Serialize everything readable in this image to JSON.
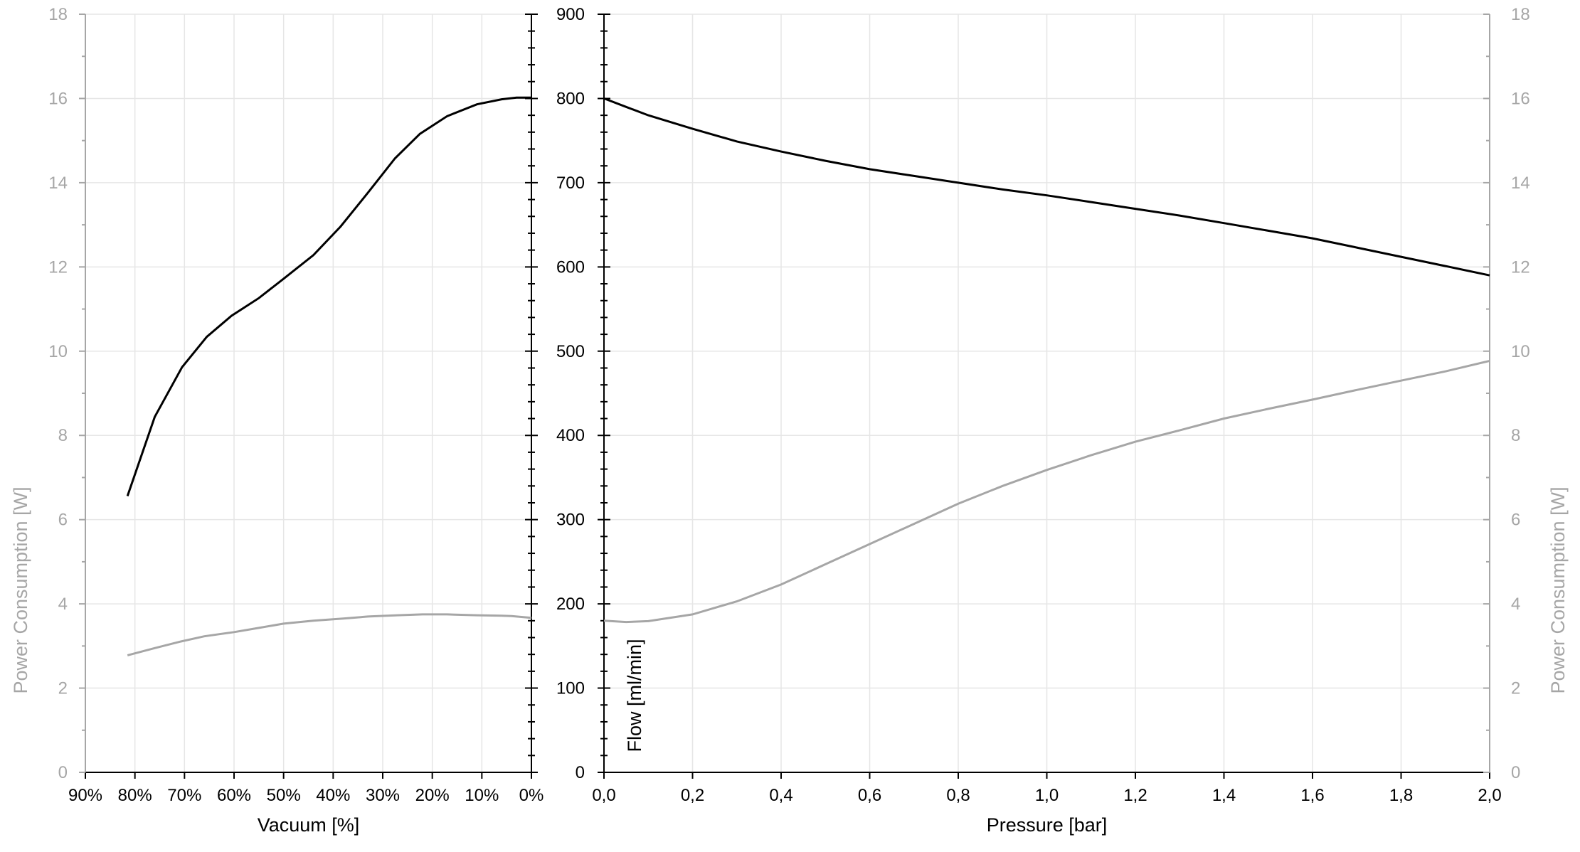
{
  "chart_data": [
    {
      "type": "line",
      "xlabel": "Vacuum [%]",
      "ylabel_left": "Power Consumption [W]",
      "ylabel_right": "",
      "x_reversed": true,
      "xlim": [
        0,
        90
      ],
      "x_ticks": [
        "90%",
        "80%",
        "70%",
        "60%",
        "50%",
        "40%",
        "30%",
        "20%",
        "10%",
        "0%"
      ],
      "x_tick_values": [
        90,
        80,
        70,
        60,
        50,
        40,
        30,
        20,
        10,
        0
      ],
      "y_left_lim": [
        0,
        18
      ],
      "y_left_ticks": [
        "0",
        "2",
        "4",
        "6",
        "8",
        "10",
        "12",
        "14",
        "16",
        "18"
      ],
      "y_right_lim": [
        0,
        900
      ],
      "y_right_ticks": [
        "0",
        "100",
        "200",
        "300",
        "400",
        "500",
        "600",
        "700",
        "800",
        "900"
      ],
      "grid": true,
      "series": [
        {
          "color": "#000000",
          "axis": "right",
          "x": [
            81.5,
            76,
            70.5,
            65.5,
            60.5,
            55,
            50,
            44,
            38.5,
            33,
            27.5,
            22.5,
            17,
            11,
            6,
            3,
            0
          ],
          "y": [
            328,
            422,
            481,
            517,
            542,
            563,
            586,
            614,
            648,
            688,
            729,
            758,
            779,
            793,
            799,
            801,
            801
          ]
        },
        {
          "color": "#a6a6a6",
          "axis": "left",
          "x": [
            81.5,
            76,
            71,
            66,
            60,
            55,
            50,
            44,
            38,
            33,
            27,
            22,
            17,
            11,
            6,
            4,
            0
          ],
          "y": [
            2.78,
            2.95,
            3.1,
            3.23,
            3.33,
            3.43,
            3.53,
            3.6,
            3.65,
            3.7,
            3.73,
            3.75,
            3.75,
            3.73,
            3.72,
            3.71,
            3.67
          ]
        }
      ]
    },
    {
      "type": "line",
      "xlabel": "Pressure [bar]",
      "ylabel_left": "Flow [ml/min]",
      "ylabel_right": "Power Consumption [W]",
      "xlim": [
        0,
        2
      ],
      "x_ticks": [
        "0,0",
        "0,2",
        "0,4",
        "0,6",
        "0,8",
        "1,0",
        "1,2",
        "1,4",
        "1,6",
        "1,8",
        "2,0"
      ],
      "x_tick_values": [
        0,
        0.2,
        0.4,
        0.6,
        0.8,
        1.0,
        1.2,
        1.4,
        1.6,
        1.8,
        2.0
      ],
      "y_left_lim": [
        0,
        900
      ],
      "y_left_ticks": [
        "0",
        "100",
        "200",
        "300",
        "400",
        "500",
        "600",
        "700",
        "800",
        "900"
      ],
      "y_right_lim": [
        0,
        18
      ],
      "y_right_ticks": [
        "0",
        "2",
        "4",
        "6",
        "8",
        "10",
        "12",
        "14",
        "16",
        "18"
      ],
      "grid": true,
      "series": [
        {
          "color": "#000000",
          "axis": "left",
          "x": [
            0,
            0.05,
            0.1,
            0.2,
            0.3,
            0.4,
            0.5,
            0.6,
            0.7,
            0.8,
            0.9,
            1.0,
            1.1,
            1.2,
            1.3,
            1.4,
            1.5,
            1.6,
            1.7,
            1.8,
            1.9,
            2.0
          ],
          "y": [
            800,
            790,
            780,
            764,
            749,
            737,
            726,
            716,
            708,
            700,
            692,
            685,
            677,
            669,
            661,
            652,
            643,
            634,
            623,
            612,
            601,
            590
          ]
        },
        {
          "color": "#a6a6a6",
          "axis": "right",
          "x": [
            0,
            0.05,
            0.1,
            0.2,
            0.3,
            0.4,
            0.5,
            0.6,
            0.7,
            0.8,
            0.9,
            1.0,
            1.1,
            1.2,
            1.3,
            1.4,
            1.5,
            1.6,
            1.7,
            1.8,
            1.9,
            2.0
          ],
          "y": [
            3.6,
            3.57,
            3.59,
            3.75,
            4.06,
            4.46,
            4.94,
            5.42,
            5.9,
            6.38,
            6.8,
            7.18,
            7.53,
            7.85,
            8.12,
            8.4,
            8.63,
            8.85,
            9.08,
            9.3,
            9.52,
            9.77
          ]
        }
      ]
    }
  ]
}
